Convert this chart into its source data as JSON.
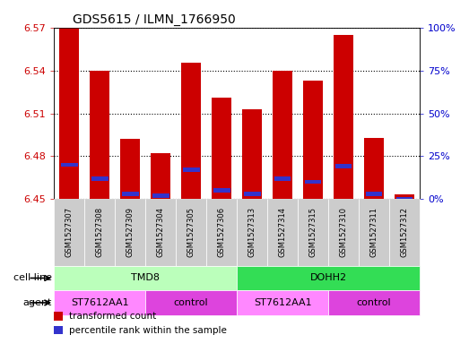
{
  "title": "GDS5615 / ILMN_1766950",
  "samples": [
    "GSM1527307",
    "GSM1527308",
    "GSM1527309",
    "GSM1527304",
    "GSM1527305",
    "GSM1527306",
    "GSM1527313",
    "GSM1527314",
    "GSM1527315",
    "GSM1527310",
    "GSM1527311",
    "GSM1527312"
  ],
  "transformed_counts": [
    6.57,
    6.54,
    6.492,
    6.482,
    6.546,
    6.521,
    6.513,
    6.54,
    6.533,
    6.565,
    6.493,
    6.453
  ],
  "percentile_ranks": [
    20,
    12,
    3,
    2,
    17,
    5,
    3,
    12,
    10,
    19,
    3,
    0
  ],
  "y_min": 6.45,
  "y_max": 6.57,
  "y_ticks": [
    6.45,
    6.48,
    6.51,
    6.54,
    6.57
  ],
  "right_y_ticks": [
    0,
    25,
    50,
    75,
    100
  ],
  "right_y_labels": [
    "0%",
    "25%",
    "50%",
    "75%",
    "100%"
  ],
  "cell_line_groups": [
    {
      "label": "TMD8",
      "start": 0,
      "end": 6,
      "color": "#BBFFBB"
    },
    {
      "label": "DOHH2",
      "start": 6,
      "end": 12,
      "color": "#33DD55"
    }
  ],
  "agent_groups": [
    {
      "label": "ST7612AA1",
      "start": 0,
      "end": 3,
      "color": "#FF88FF"
    },
    {
      "label": "control",
      "start": 3,
      "end": 6,
      "color": "#DD44DD"
    },
    {
      "label": "ST7612AA1",
      "start": 6,
      "end": 9,
      "color": "#FF88FF"
    },
    {
      "label": "control",
      "start": 9,
      "end": 12,
      "color": "#DD44DD"
    }
  ],
  "bar_color": "#CC0000",
  "blue_bar_color": "#3333CC",
  "bar_width": 0.65,
  "legend_items": [
    {
      "color": "#CC0000",
      "label": "transformed count"
    },
    {
      "color": "#3333CC",
      "label": "percentile rank within the sample"
    }
  ],
  "axis_label_color_left": "#CC0000",
  "axis_label_color_right": "#0000CC",
  "sample_box_color": "#CCCCCC",
  "grid_color": "#000000"
}
